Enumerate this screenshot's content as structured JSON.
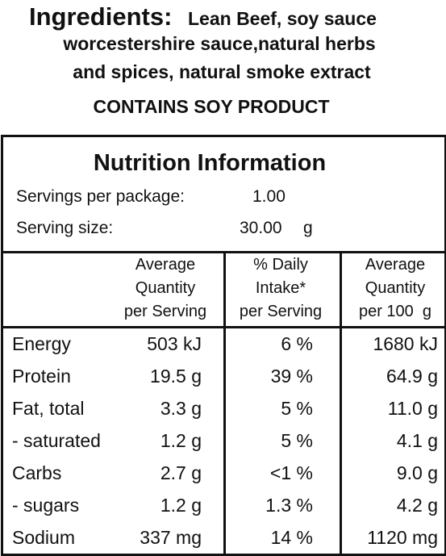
{
  "ingredients": {
    "label": "Ingredients:",
    "lines": [
      "Lean Beef, soy sauce",
      "worcestershire sauce,natural herbs",
      "and spices, natural smoke extract"
    ]
  },
  "allergen": "CONTAINS SOY PRODUCT",
  "nutrition": {
    "title": "Nutrition Information",
    "servings": [
      {
        "label": "Servings per package:",
        "value": "1.00"
      },
      {
        "label": "Serving size:",
        "value": "30.00",
        "unit": "g"
      }
    ],
    "columns": [
      [
        "Average",
        "Quantity",
        "per Serving"
      ],
      [
        "% Daily",
        "Intake*",
        "per Serving"
      ],
      [
        "Average",
        "Quantity",
        "per 100  g"
      ]
    ],
    "rows": [
      [
        "Energy",
        "503 kJ",
        "6 %",
        "1680 kJ"
      ],
      [
        "Protein",
        "19.5 g",
        "39 %",
        "64.9 g"
      ],
      [
        "Fat, total",
        "3.3 g",
        "5 %",
        "11.0 g"
      ],
      [
        "- saturated",
        "1.2 g",
        "5 %",
        "4.1 g"
      ],
      [
        "Carbs",
        "2.7 g",
        "<1 %",
        "9.0 g"
      ],
      [
        "- sugars",
        "1.2 g",
        "1.3 %",
        "4.2 g"
      ],
      [
        "Sodium",
        "337 mg",
        "14 %",
        "1120 mg"
      ]
    ]
  }
}
